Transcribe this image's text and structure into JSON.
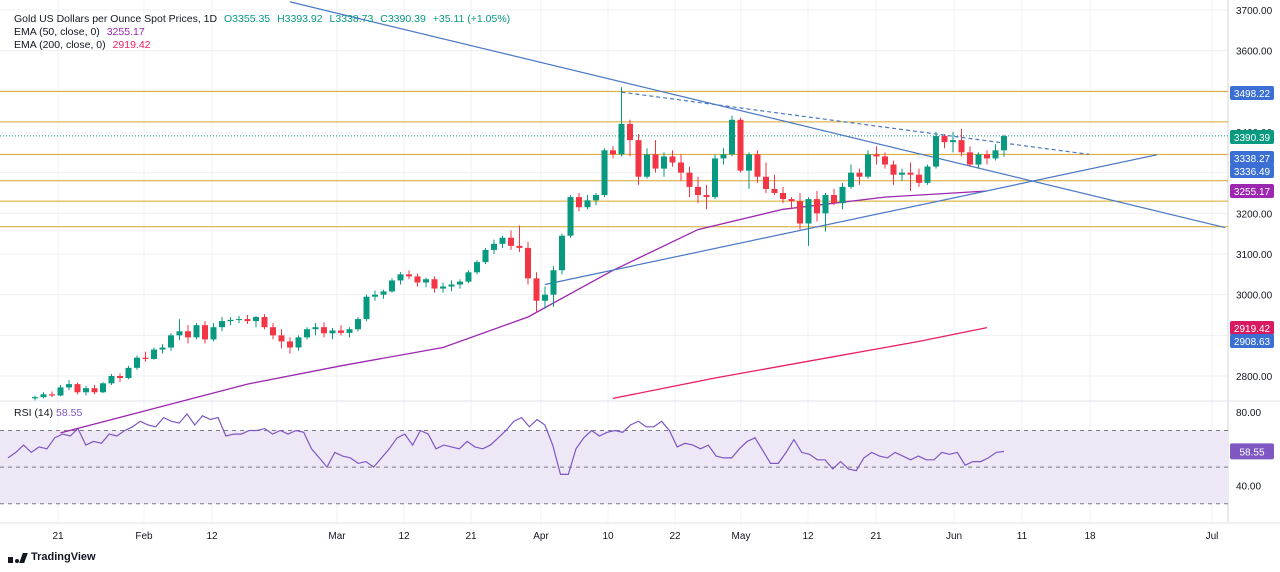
{
  "header": {
    "title": "Gold US Dollars per Ounce Spot Prices, 1D",
    "open": "O3355.35",
    "high": "H3393.92",
    "low": "L3338.73",
    "close": "C3390.39",
    "change": "+35.11 (+1.05%)",
    "ema50_label": "EMA (50, close, 0)",
    "ema50_value": "3255.17",
    "ema200_label": "EMA (200, close, 0)",
    "ema200_value": "2919.42"
  },
  "rsi": {
    "label": "RSI (14)",
    "value": "58.55"
  },
  "branding": {
    "logo_text": "TradingView"
  },
  "colors": {
    "up": "#089981",
    "down": "#f23645",
    "ema50": "#9c27b0",
    "ema200": "#e91e63",
    "trend": "#4a78c4",
    "level": "#d6a62a",
    "rsi": "#7e57c2",
    "rsi_band": "#ede7f6",
    "grid": "#eef0f3",
    "axis_text": "#131722"
  },
  "chart_data": [
    {
      "type": "candlestick",
      "title": "Gold US Dollars per Ounce Spot Prices, 1D",
      "price_axis": {
        "ticks": [
          "2800.00",
          "2900.00",
          "3000.00",
          "3100.00",
          "3200.00",
          "3300.00",
          "3400.00",
          "3500.00",
          "3600.00",
          "3700.00"
        ],
        "range": [
          2745,
          3700
        ]
      },
      "time_axis": {
        "labels": [
          "21",
          "Feb",
          "12",
          "Mar",
          "12",
          "21",
          "Apr",
          "10",
          "22",
          "May",
          "12",
          "21",
          "Jun",
          "11",
          "18",
          "Jul"
        ]
      },
      "price_labels": [
        {
          "text": "3498.22",
          "value": 3498.22,
          "style": "trend"
        },
        {
          "text": "3390.39",
          "value": 3390.39,
          "style": "up"
        },
        {
          "text": "3338.27",
          "value": 3338.27,
          "style": "trend"
        },
        {
          "text": "3336.49",
          "value": 3336.49,
          "style": "trend"
        },
        {
          "text": "3255.17",
          "value": 3255.17,
          "style": "ema50"
        },
        {
          "text": "2919.42",
          "value": 2919.42,
          "style": "ema200"
        },
        {
          "text": "2908.63",
          "value": 2908.63,
          "style": "trend"
        }
      ],
      "horizontal_levels": [
        3500,
        3425,
        3345,
        3280,
        3230,
        3167
      ],
      "ohlc": [
        [
          2745,
          2752,
          2740,
          2748
        ],
        [
          2748,
          2760,
          2745,
          2755
        ],
        [
          2755,
          2762,
          2748,
          2752
        ],
        [
          2752,
          2778,
          2750,
          2772
        ],
        [
          2772,
          2790,
          2765,
          2780
        ],
        [
          2780,
          2784,
          2755,
          2760
        ],
        [
          2760,
          2775,
          2752,
          2770
        ],
        [
          2770,
          2778,
          2755,
          2760
        ],
        [
          2760,
          2785,
          2758,
          2782
        ],
        [
          2782,
          2805,
          2778,
          2800
        ],
        [
          2800,
          2806,
          2785,
          2795
        ],
        [
          2795,
          2825,
          2792,
          2820
        ],
        [
          2820,
          2850,
          2815,
          2845
        ],
        [
          2845,
          2860,
          2835,
          2842
        ],
        [
          2842,
          2870,
          2840,
          2865
        ],
        [
          2865,
          2878,
          2855,
          2870
        ],
        [
          2870,
          2905,
          2862,
          2900
        ],
        [
          2900,
          2940,
          2888,
          2910
        ],
        [
          2910,
          2925,
          2880,
          2895
        ],
        [
          2895,
          2930,
          2890,
          2925
        ],
        [
          2925,
          2935,
          2880,
          2890
        ],
        [
          2890,
          2930,
          2885,
          2920
        ],
        [
          2920,
          2945,
          2910,
          2935
        ],
        [
          2935,
          2945,
          2925,
          2938
        ],
        [
          2938,
          2948,
          2930,
          2940
        ],
        [
          2940,
          2950,
          2928,
          2935
        ],
        [
          2935,
          2948,
          2920,
          2945
        ],
        [
          2945,
          2952,
          2915,
          2920
        ],
        [
          2920,
          2930,
          2890,
          2900
        ],
        [
          2900,
          2915,
          2868,
          2885
        ],
        [
          2885,
          2895,
          2855,
          2870
        ],
        [
          2870,
          2900,
          2862,
          2895
        ],
        [
          2895,
          2920,
          2890,
          2915
        ],
        [
          2915,
          2930,
          2900,
          2920
        ],
        [
          2920,
          2932,
          2895,
          2905
        ],
        [
          2905,
          2918,
          2890,
          2912
        ],
        [
          2912,
          2925,
          2900,
          2906
        ],
        [
          2906,
          2920,
          2895,
          2915
        ],
        [
          2915,
          2945,
          2910,
          2940
        ],
        [
          2940,
          3000,
          2935,
          2995
        ],
        [
          2995,
          3010,
          2985,
          3000
        ],
        [
          3000,
          3012,
          2990,
          3008
        ],
        [
          3008,
          3040,
          3005,
          3035
        ],
        [
          3035,
          3055,
          3025,
          3050
        ],
        [
          3050,
          3060,
          3038,
          3045
        ],
        [
          3045,
          3052,
          3020,
          3030
        ],
        [
          3030,
          3042,
          3018,
          3038
        ],
        [
          3038,
          3045,
          3005,
          3015
        ],
        [
          3015,
          3030,
          3005,
          3020
        ],
        [
          3020,
          3035,
          3008,
          3025
        ],
        [
          3025,
          3038,
          3015,
          3032
        ],
        [
          3032,
          3060,
          3028,
          3055
        ],
        [
          3055,
          3085,
          3050,
          3080
        ],
        [
          3080,
          3115,
          3075,
          3110
        ],
        [
          3110,
          3135,
          3100,
          3125
        ],
        [
          3125,
          3145,
          3115,
          3140
        ],
        [
          3140,
          3158,
          3110,
          3120
        ],
        [
          3120,
          3170,
          3105,
          3115
        ],
        [
          3115,
          3130,
          3025,
          3040
        ],
        [
          3040,
          3055,
          2955,
          2985
        ],
        [
          2985,
          3020,
          2965,
          3000
        ],
        [
          3000,
          3070,
          2970,
          3060
        ],
        [
          3060,
          3150,
          3050,
          3145
        ],
        [
          3145,
          3245,
          3140,
          3240
        ],
        [
          3240,
          3250,
          3205,
          3215
        ],
        [
          3215,
          3245,
          3210,
          3232
        ],
        [
          3232,
          3250,
          3220,
          3245
        ],
        [
          3245,
          3360,
          3240,
          3355
        ],
        [
          3355,
          3365,
          3335,
          3345
        ],
        [
          3345,
          3510,
          3340,
          3420
        ],
        [
          3420,
          3430,
          3340,
          3380
        ],
        [
          3380,
          3395,
          3270,
          3290
        ],
        [
          3290,
          3360,
          3285,
          3345
        ],
        [
          3345,
          3380,
          3300,
          3310
        ],
        [
          3310,
          3350,
          3290,
          3340
        ],
        [
          3340,
          3355,
          3315,
          3325
        ],
        [
          3325,
          3345,
          3280,
          3300
        ],
        [
          3300,
          3315,
          3240,
          3265
        ],
        [
          3265,
          3290,
          3225,
          3245
        ],
        [
          3245,
          3270,
          3210,
          3240
        ],
        [
          3240,
          3345,
          3235,
          3335
        ],
        [
          3335,
          3360,
          3320,
          3345
        ],
        [
          3345,
          3440,
          3340,
          3430
        ],
        [
          3430,
          3435,
          3300,
          3305
        ],
        [
          3305,
          3350,
          3260,
          3345
        ],
        [
          3345,
          3355,
          3275,
          3290
        ],
        [
          3290,
          3325,
          3250,
          3260
        ],
        [
          3260,
          3295,
          3245,
          3250
        ],
        [
          3250,
          3265,
          3225,
          3235
        ],
        [
          3235,
          3240,
          3210,
          3230
        ],
        [
          3230,
          3250,
          3160,
          3175
        ],
        [
          3175,
          3240,
          3120,
          3235
        ],
        [
          3235,
          3255,
          3180,
          3200
        ],
        [
          3200,
          3250,
          3155,
          3245
        ],
        [
          3245,
          3260,
          3220,
          3225
        ],
        [
          3225,
          3275,
          3210,
          3265
        ],
        [
          3265,
          3320,
          3260,
          3300
        ],
        [
          3300,
          3310,
          3270,
          3290
        ],
        [
          3290,
          3355,
          3285,
          3345
        ],
        [
          3345,
          3365,
          3320,
          3340
        ],
        [
          3340,
          3350,
          3310,
          3320
        ],
        [
          3320,
          3330,
          3270,
          3295
        ],
        [
          3295,
          3310,
          3280,
          3300
        ],
        [
          3300,
          3325,
          3255,
          3295
        ],
        [
          3295,
          3310,
          3265,
          3275
        ],
        [
          3275,
          3320,
          3270,
          3315
        ],
        [
          3315,
          3400,
          3310,
          3390
        ],
        [
          3390,
          3395,
          3360,
          3375
        ],
        [
          3375,
          3400,
          3350,
          3380
        ],
        [
          3380,
          3408,
          3340,
          3350
        ],
        [
          3350,
          3365,
          3315,
          3320
        ],
        [
          3320,
          3350,
          3310,
          3345
        ],
        [
          3345,
          3355,
          3320,
          3335
        ],
        [
          3335,
          3370,
          3330,
          3355
        ],
        [
          3355,
          3394,
          3339,
          3390
        ]
      ],
      "ema50": [
        [
          3,
          2660
        ],
        [
          14,
          2720
        ],
        [
          25,
          2780
        ],
        [
          36,
          2825
        ],
        [
          48,
          2870
        ],
        [
          58,
          2945
        ],
        [
          68,
          3060
        ],
        [
          78,
          3160
        ],
        [
          88,
          3210
        ],
        [
          100,
          3240
        ],
        [
          112,
          3255
        ]
      ],
      "ema200": [
        [
          68,
          2745
        ],
        [
          80,
          2795
        ],
        [
          92,
          2840
        ],
        [
          104,
          2885
        ],
        [
          112,
          2919
        ]
      ],
      "trendlines": [
        {
          "from": [
            30,
            3720
          ],
          "to": [
            140,
            3165
          ],
          "style": "solid"
        },
        {
          "from": [
            60,
            3025
          ],
          "to": [
            132,
            3344
          ],
          "style": "solid"
        },
        {
          "from": [
            69,
            3498
          ],
          "to": [
            124,
            3345
          ],
          "style": "dashed"
        }
      ]
    },
    {
      "type": "line",
      "title": "RSI (14)",
      "ylim": [
        20,
        85
      ],
      "ticks": [
        "40.00",
        "60.00",
        "80.00"
      ],
      "bands": {
        "upper": 70,
        "lower": 30,
        "middle": 50
      },
      "last_value": 58.55,
      "values": [
        55,
        58,
        62,
        58,
        61,
        60,
        66,
        68,
        67,
        71,
        62,
        64,
        63,
        68,
        67,
        70,
        72,
        75,
        73,
        72,
        77,
        75,
        74,
        79,
        73,
        78,
        76,
        77,
        67,
        68,
        68,
        70,
        70,
        71,
        68,
        70,
        68,
        70,
        69,
        60,
        55,
        50,
        58,
        56,
        55,
        52,
        53,
        50,
        55,
        60,
        66,
        68,
        62,
        70,
        68,
        60,
        62,
        61,
        60,
        64,
        61,
        60,
        62,
        66,
        70,
        75,
        77,
        72,
        76,
        73,
        62,
        46,
        46,
        60,
        66,
        70,
        67,
        69,
        70,
        69,
        73,
        75,
        72,
        72,
        75,
        70,
        61,
        63,
        62,
        60,
        62,
        56,
        55,
        55,
        60,
        64,
        66,
        59,
        52,
        52,
        58,
        65,
        58,
        57,
        54,
        54,
        49,
        53,
        49,
        48,
        55,
        58,
        56,
        55,
        58,
        56,
        54,
        56,
        54,
        54,
        58,
        57,
        58,
        51,
        53,
        53,
        55,
        58,
        58.55
      ]
    }
  ]
}
